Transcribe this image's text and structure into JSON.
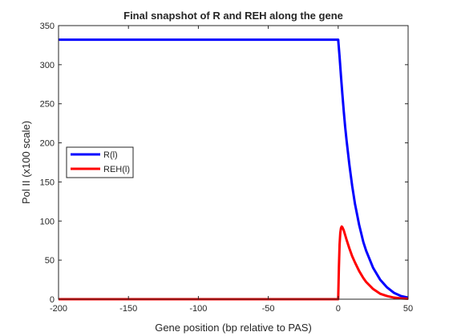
{
  "chart_data": {
    "type": "line",
    "title": "Final snapshot of R and REH along the gene",
    "xlabel": "Gene position (bp relative to PAS)",
    "ylabel": "Pol II (x100 scale)",
    "xlim": [
      -200,
      50
    ],
    "ylim": [
      0,
      350
    ],
    "xticks": [
      -200,
      -150,
      -100,
      -50,
      0,
      50
    ],
    "yticks": [
      0,
      50,
      100,
      150,
      200,
      250,
      300,
      350
    ],
    "xtick_labels": [
      "-200",
      "-150",
      "-100",
      "-50",
      "0",
      "50"
    ],
    "ytick_labels": [
      "0",
      "50",
      "100",
      "150",
      "200",
      "250",
      "300",
      "350"
    ],
    "grid": false,
    "legend_position": "middle-left",
    "series": [
      {
        "name": "R(l)",
        "color": "#0000ff",
        "x": [
          -200,
          -150,
          -100,
          -50,
          -10,
          0,
          1,
          2,
          3,
          4,
          5,
          6,
          8,
          10,
          12,
          15,
          18,
          20,
          25,
          30,
          35,
          40,
          45,
          50
        ],
        "y": [
          332,
          332,
          332,
          332,
          332,
          332,
          310,
          285,
          262,
          240,
          220,
          203,
          172,
          145,
          122,
          95,
          73,
          62,
          40,
          25,
          15,
          8,
          4,
          2
        ]
      },
      {
        "name": "REH(l)",
        "color": "#ff0000",
        "x": [
          -200,
          -150,
          -100,
          -50,
          -10,
          0,
          0.5,
          1,
          1.5,
          2,
          2.5,
          3,
          4,
          5,
          6,
          8,
          10,
          12,
          15,
          18,
          20,
          25,
          30,
          35,
          40,
          45,
          50
        ],
        "y": [
          0,
          0,
          0,
          0,
          0,
          0,
          40,
          70,
          85,
          91,
          93,
          92,
          88,
          82,
          76,
          65,
          55,
          47,
          36,
          27,
          22,
          13,
          7,
          4,
          2,
          1,
          0.5
        ]
      }
    ]
  }
}
